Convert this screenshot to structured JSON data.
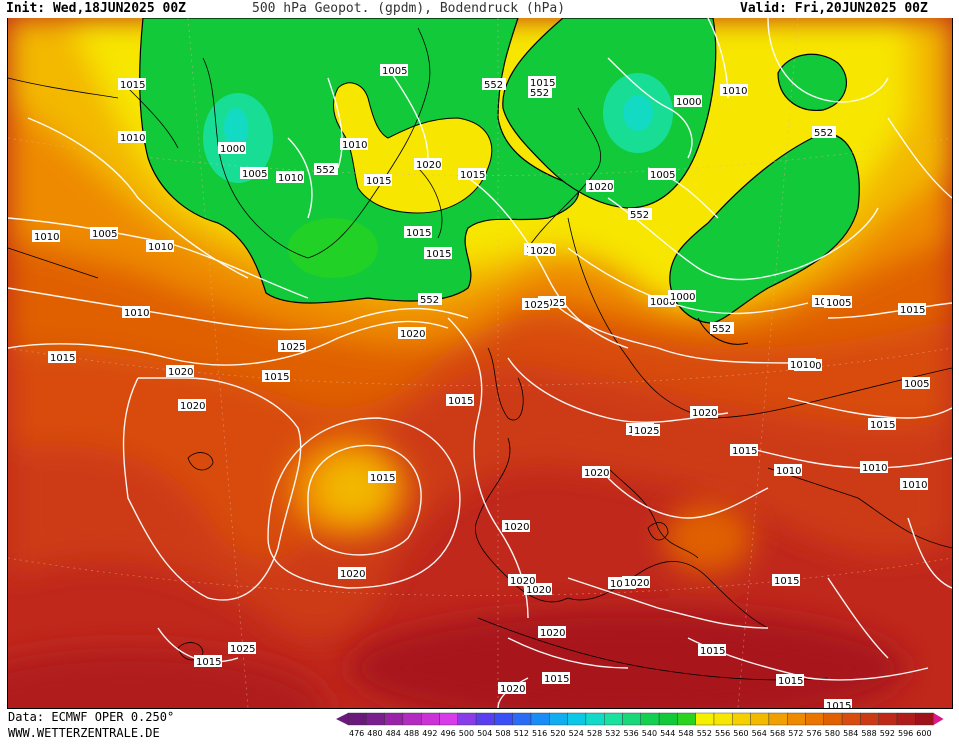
{
  "header": {
    "init": "Init: Wed,18JUN2025 00Z",
    "title": "500 hPa Geopot. (gpdm), Bodendruck (hPa)",
    "valid": "Valid: Fri,20JUN2025 00Z"
  },
  "footer": {
    "source": "Data: ECMWF OPER 0.250°",
    "website": "WWW.WETTERZENTRALE.DE"
  },
  "legend": {
    "unit": "gpdm",
    "levels": [
      "476",
      "480",
      "484",
      "488",
      "492",
      "496",
      "500",
      "504",
      "508",
      "512",
      "516",
      "520",
      "524",
      "528",
      "532",
      "536",
      "540",
      "544",
      "548",
      "552",
      "556",
      "560",
      "564",
      "568",
      "572",
      "576",
      "580",
      "584",
      "588",
      "592",
      "596",
      "600"
    ],
    "colors": [
      "#6a1a7a",
      "#7b1f8f",
      "#9a22a8",
      "#b42bc0",
      "#cc33d6",
      "#d83bea",
      "#8a3ce8",
      "#5a3ff0",
      "#3b4ff7",
      "#2b6cf7",
      "#1a8cf7",
      "#10aef0",
      "#0ac8e6",
      "#12d9c8",
      "#1ae0a0",
      "#18d87a",
      "#14d050",
      "#12c93a",
      "#2ad41e",
      "#f5f000",
      "#f7e600",
      "#f5cf00",
      "#f3b800",
      "#f0a000",
      "#ee8a00",
      "#ea7600",
      "#e06000",
      "#d84c10",
      "#cc3a14",
      "#bf2a18",
      "#b01c1a",
      "#a0121a"
    ]
  },
  "map": {
    "height_field": "500 hPa geopotential (gpdm)",
    "isohypse_labels": [
      "552",
      "552",
      "552",
      "552",
      "552",
      "552",
      "552"
    ],
    "isobar_labels": [
      "1005",
      "1015",
      "1010",
      "1015",
      "1000",
      "1005",
      "1010",
      "1010",
      "1015",
      "1020",
      "1015",
      "1015",
      "1020",
      "1000",
      "1005",
      "1010",
      "1010",
      "1005",
      "1010",
      "1015",
      "1020",
      "1025",
      "1020",
      "1015",
      "1020",
      "1020",
      "1015",
      "1025",
      "1020",
      "1025",
      "1020",
      "1015",
      "1020",
      "1020",
      "1020",
      "1015",
      "1010",
      "1005",
      "1015",
      "1010",
      "1010",
      "1000",
      "1005",
      "1010",
      "1015",
      "1020",
      "1025",
      "1025",
      "1015",
      "1015",
      "1015",
      "1015",
      "1015",
      "1020",
      "1020",
      "1020",
      "1025",
      "1010",
      "1000",
      "1005",
      "1010",
      "1015",
      "1015",
      "1020",
      "1020"
    ]
  }
}
